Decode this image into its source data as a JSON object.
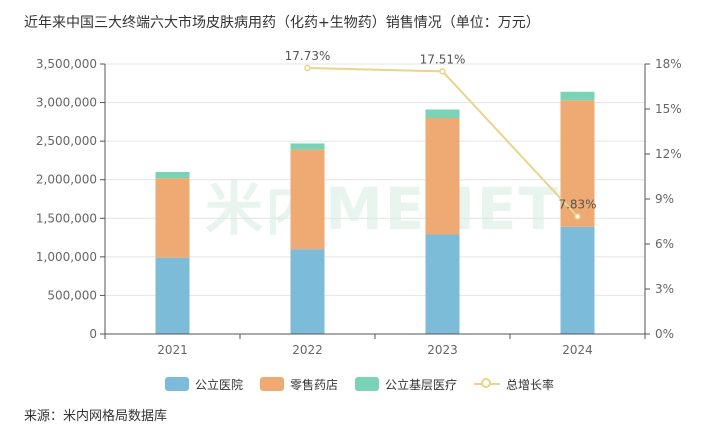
{
  "title": "近年来中国三大终端六大市场皮肤病用药（化药+生物药）销售情况（单位：万元）",
  "source": "来源：米内网格局数据库",
  "watermark": "米内MENET",
  "colors": {
    "hospital": "#7dbcd9",
    "retail": "#eeaa72",
    "grassroots": "#79d3b4",
    "growth": "#e9d48a",
    "axis": "#666666",
    "grid": "#e4e4e4"
  },
  "chart_data": {
    "type": "bar",
    "stacked": true,
    "categories": [
      "2021",
      "2022",
      "2023",
      "2024"
    ],
    "series": [
      {
        "name": "公立医院",
        "values": [
          990000,
          1100000,
          1290000,
          1390000
        ]
      },
      {
        "name": "零售药店",
        "values": [
          1030000,
          1290000,
          1510000,
          1640000
        ]
      },
      {
        "name": "公立基层医疗",
        "values": [
          80000,
          80000,
          110000,
          110000
        ]
      }
    ],
    "line_series": {
      "name": "总增长率",
      "axis": "right",
      "values": [
        null,
        17.73,
        17.51,
        7.83
      ],
      "labels": [
        "",
        "17.73%",
        "17.51%",
        "7.83%"
      ]
    },
    "y_left": {
      "ticks": [
        0,
        500000,
        1000000,
        1500000,
        2000000,
        2500000,
        3000000,
        3500000
      ],
      "tick_labels": [
        "0",
        "500,000",
        "1,000,000",
        "1,500,000",
        "2,000,000",
        "2,500,000",
        "3,000,000",
        "3,500,000"
      ],
      "ylim": [
        0,
        3500000
      ]
    },
    "y_right": {
      "ticks": [
        0,
        3,
        6,
        9,
        12,
        15,
        18
      ],
      "tick_labels": [
        "0%",
        "3%",
        "6%",
        "9%",
        "12%",
        "15%",
        "18%"
      ],
      "ylim": [
        0,
        18
      ]
    },
    "grid": true,
    "legend": "bottom"
  }
}
